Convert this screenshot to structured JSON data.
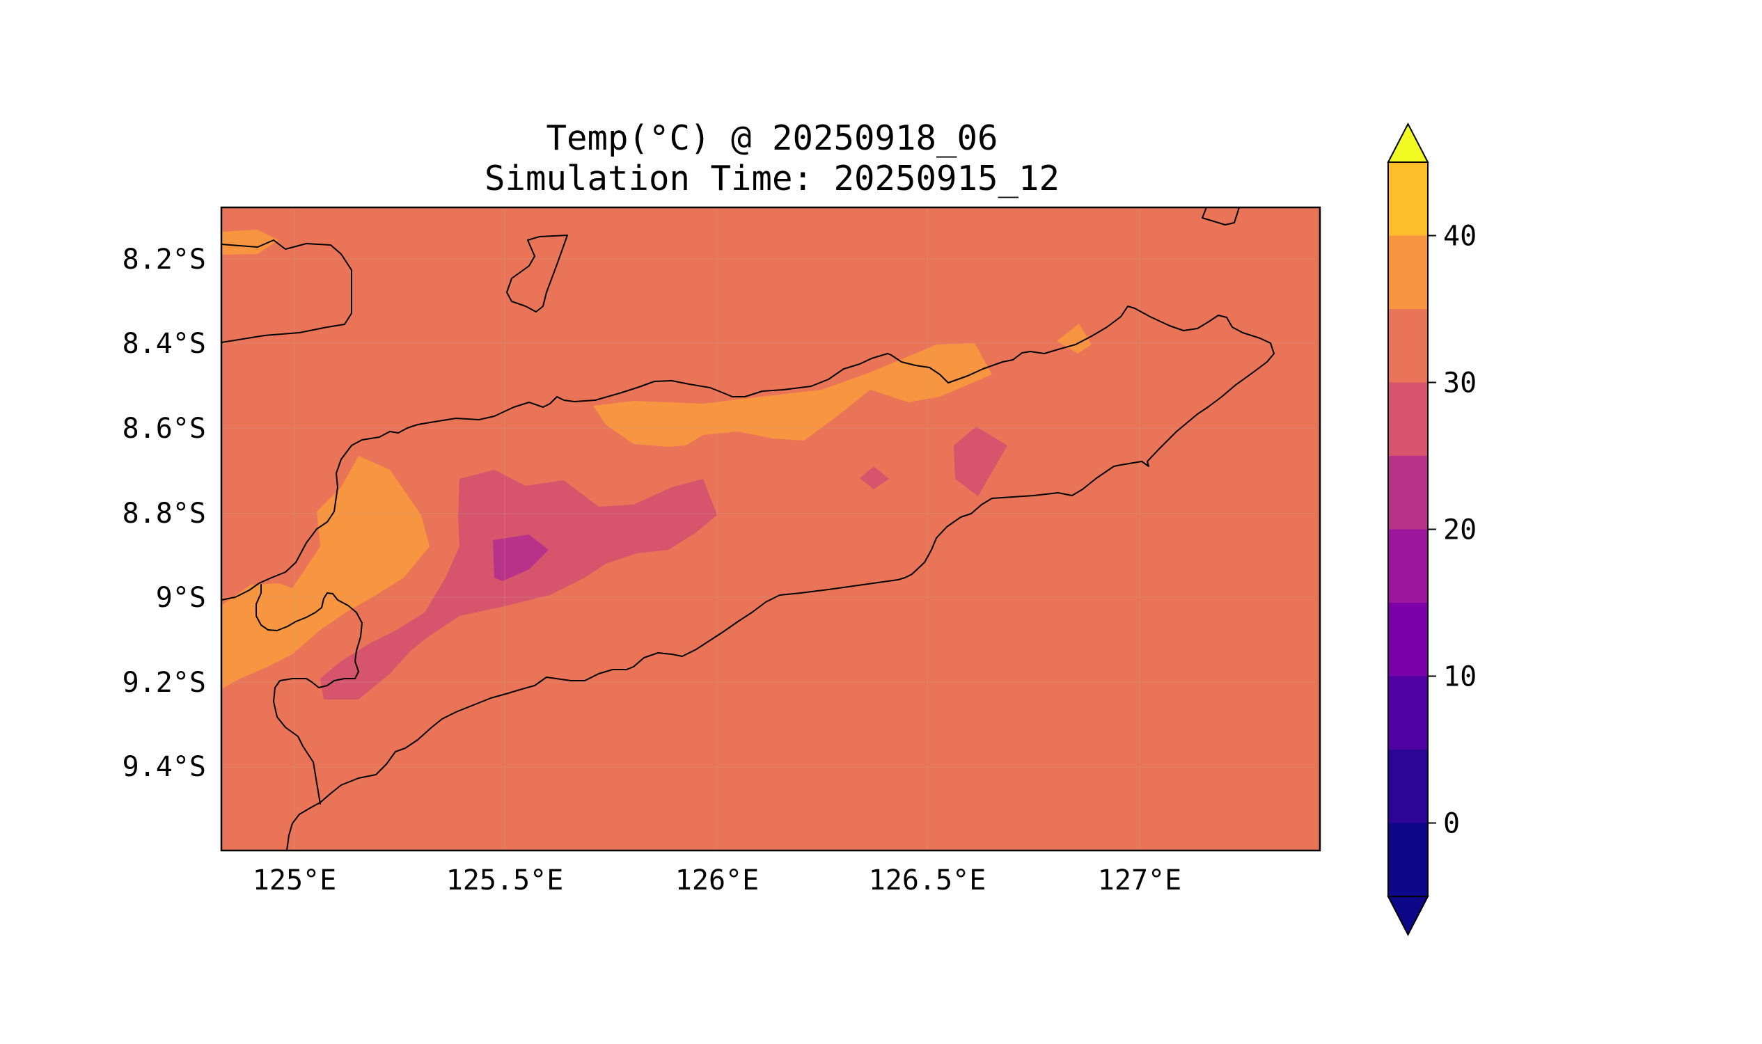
{
  "title_line1": "Temp(°C) @ 20250918_06",
  "title_line2": "Simulation Time: 20250915_12",
  "lon_ticks": [
    "125°E",
    "125.5°E",
    "126°E",
    "126.5°E",
    "127°E"
  ],
  "lat_ticks": [
    "8.2°S",
    "8.4°S",
    "8.6°S",
    "8.8°S",
    "9°S",
    "9.2°S",
    "9.4°S"
  ],
  "colorbar": {
    "labels": [
      "0",
      "10",
      "20",
      "30",
      "40"
    ],
    "levels": [
      -5,
      0,
      5,
      10,
      15,
      20,
      25,
      30,
      35,
      40,
      45
    ],
    "colors": [
      "#0d0887",
      "#2d0594",
      "#5002a2",
      "#7a02a8",
      "#9c179e",
      "#b93289",
      "#d6556d",
      "#ea7457",
      "#f89540",
      "#febd2a",
      "#f0f921"
    ],
    "extend": "both",
    "colormap": "plasma"
  },
  "map": {
    "background_level_color": "#ea7457",
    "region_note_colors": {
      "warm": "#f89540",
      "hot": "#febd2a",
      "cool": "#d6556d",
      "cooler": "#b93289"
    }
  }
}
